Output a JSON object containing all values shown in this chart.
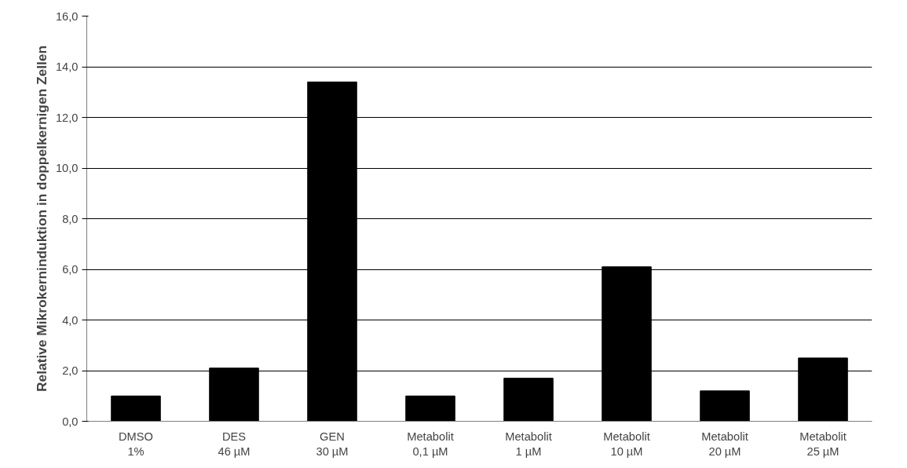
{
  "chart_data": {
    "type": "bar",
    "ylabel": "Relative Mikrokerninduktion in doppelkernigen Zellen",
    "categories": [
      "DMSO\n1%",
      "DES\n46 µM",
      "GEN\n30 µM",
      "Metabolit\n0,1 µM",
      "Metabolit\n1 µM",
      "Metabolit\n10 µM",
      "Metabolit\n20 µM",
      "Metabolit\n25 µM"
    ],
    "values": [
      1.0,
      2.1,
      13.4,
      1.0,
      1.7,
      6.1,
      1.2,
      2.5
    ],
    "color": "#000000",
    "ylim": [
      0,
      16
    ],
    "yticks": [
      {
        "value": 0,
        "label": "0,0"
      },
      {
        "value": 2,
        "label": "2,0"
      },
      {
        "value": 4,
        "label": "4,0"
      },
      {
        "value": 6,
        "label": "6,0"
      },
      {
        "value": 8,
        "label": "8,0"
      },
      {
        "value": 10,
        "label": "10,0"
      },
      {
        "value": 12,
        "label": "12,0"
      },
      {
        "value": 14,
        "label": "14,0"
      },
      {
        "value": 16,
        "label": "16,0"
      }
    ],
    "grid": "y"
  }
}
